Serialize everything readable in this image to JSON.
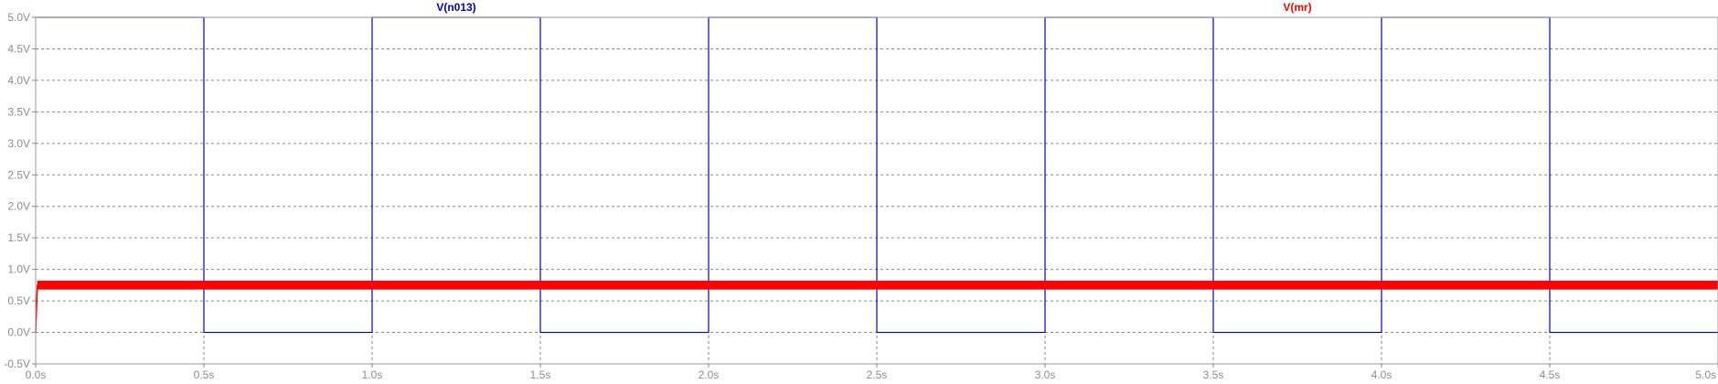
{
  "chart_data": {
    "type": "line",
    "title": "",
    "xlabel": "",
    "ylabel": "",
    "xlim": [
      0,
      5
    ],
    "ylim": [
      -0.5,
      5
    ],
    "grid": true,
    "x_ticks": [
      0,
      0.5,
      1,
      1.5,
      2,
      2.5,
      3,
      3.5,
      4,
      4.5,
      5
    ],
    "x_tick_labels": [
      "0.0s",
      "0.5s",
      "1.0s",
      "1.5s",
      "2.0s",
      "2.5s",
      "3.0s",
      "3.5s",
      "4.0s",
      "4.5s",
      "5.0s"
    ],
    "y_ticks": [
      -0.5,
      0,
      0.5,
      1,
      1.5,
      2,
      2.5,
      3,
      3.5,
      4,
      4.5,
      5
    ],
    "y_tick_labels": [
      "-0.5V",
      "0.0V",
      "0.5V",
      "1.0V",
      "1.5V",
      "2.0V",
      "2.5V",
      "3.0V",
      "3.5V",
      "4.0V",
      "4.5V",
      "5.0V"
    ],
    "series": [
      {
        "name": "V(n013)",
        "color": "#0000cc",
        "x": [
          0,
          0.5,
          0.5,
          1,
          1,
          1.5,
          1.5,
          2,
          2,
          2.5,
          2.5,
          3,
          3,
          3.5,
          3.5,
          4,
          4,
          4.5,
          4.5,
          5
        ],
        "y": [
          5,
          5,
          0,
          0,
          5,
          5,
          0,
          0,
          5,
          5,
          0,
          0,
          5,
          5,
          0,
          0,
          5,
          5,
          0,
          0
        ]
      },
      {
        "name": "V(mr)",
        "color": "#ff0000",
        "x": [
          0,
          0.005,
          5
        ],
        "y": [
          0,
          0.75,
          0.75
        ],
        "noise_band": [
          0.68,
          0.82
        ]
      }
    ]
  }
}
